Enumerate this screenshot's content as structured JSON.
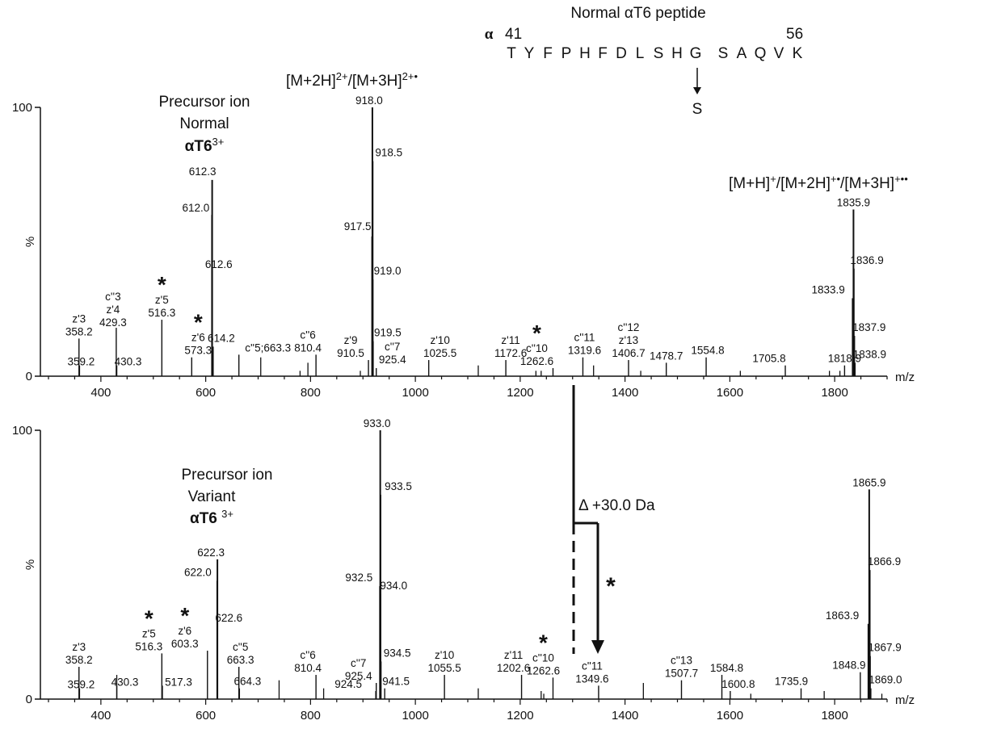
{
  "header": {
    "title": "Normal αT6 peptide",
    "alpha": "α",
    "start_pos": "41",
    "end_pos": "56",
    "sequence": [
      "T",
      "Y",
      "F",
      "P",
      "H",
      "F",
      "D",
      "L",
      "S",
      "H",
      "G",
      "S",
      "A",
      "Q",
      "V",
      "K"
    ],
    "substituted_residue": "G",
    "substitution": "S"
  },
  "annotations": {
    "precursor_top": [
      "Precursor ion",
      "Normal",
      "αT6"
    ],
    "precursor_top_charge": "3+",
    "precursor_bottom": [
      "Precursor ion",
      "Variant",
      "αT6 "
    ],
    "precursor_bottom_charge": "3+",
    "ion_2plus": "[M+2H]",
    "ion_2plus_sup": "2+",
    "ion_2plus_mid": "/[M+3H]",
    "ion_2plus_sup2": "2+•",
    "ion_1plus": "[M+H]",
    "ion_1plus_sup": "+",
    "ion_1plus_mid": "/[M+2H]",
    "ion_1plus_sup2": "+•",
    "ion_1plus_mid2": "/[M+3H]",
    "ion_1plus_sup3": "+••",
    "delta": "Δ +30.0 Da",
    "asterisk": "*"
  },
  "chart_data": [
    {
      "type": "bar",
      "panel": "normal",
      "xlabel": "m/z",
      "ylabel": "%",
      "xlim": [
        300,
        1900
      ],
      "ylim": [
        0,
        100
      ],
      "xticks": [
        400,
        600,
        800,
        1000,
        1200,
        1400,
        1600,
        1800
      ],
      "yticks": [
        0,
        100
      ],
      "peaks": [
        {
          "mz": 358.2,
          "intensity": 14,
          "label": [
            "z'3",
            "358.2"
          ]
        },
        {
          "mz": 359.2,
          "intensity": 4,
          "label": [
            "359.2"
          ]
        },
        {
          "mz": 429.3,
          "intensity": 18,
          "label": [
            "c''3",
            "z'4",
            "429.3"
          ]
        },
        {
          "mz": 430.3,
          "intensity": 4,
          "label": [
            "430.3"
          ]
        },
        {
          "mz": 516.3,
          "intensity": 21,
          "label": [
            "z'5",
            "516.3"
          ],
          "star": true
        },
        {
          "mz": 573.3,
          "intensity": 7,
          "label": [
            "z'6",
            "573.3"
          ],
          "star": true
        },
        {
          "mz": 612.0,
          "intensity": 60,
          "label": [
            "612.0"
          ]
        },
        {
          "mz": 612.3,
          "intensity": 73,
          "label": [
            "612.3"
          ]
        },
        {
          "mz": 612.6,
          "intensity": 39,
          "label": [
            "612.6"
          ]
        },
        {
          "mz": 614.2,
          "intensity": 11,
          "label": [
            "614.2"
          ]
        },
        {
          "mz": 663.3,
          "intensity": 8,
          "label": [
            "c''5;663.3"
          ]
        },
        {
          "mz": 810.4,
          "intensity": 8,
          "label": [
            "c''6",
            "810.4"
          ]
        },
        {
          "mz": 910.5,
          "intensity": 6,
          "label": [
            "z'9",
            "910.5"
          ]
        },
        {
          "mz": 917.5,
          "intensity": 52,
          "label": [
            "917.5"
          ]
        },
        {
          "mz": 918.0,
          "intensity": 100,
          "label": [
            "918.0"
          ]
        },
        {
          "mz": 918.5,
          "intensity": 80,
          "label": [
            "918.5"
          ]
        },
        {
          "mz": 919.0,
          "intensity": 36,
          "label": [
            "919.0"
          ]
        },
        {
          "mz": 919.5,
          "intensity": 13,
          "label": [
            "919.5"
          ]
        },
        {
          "mz": 925.4,
          "intensity": 3,
          "label": [
            "c''7",
            "925.4"
          ]
        },
        {
          "mz": 1025.5,
          "intensity": 6,
          "label": [
            "z'10",
            "1025.5"
          ]
        },
        {
          "mz": 1172.6,
          "intensity": 6,
          "label": [
            "z'11",
            "1172.6"
          ]
        },
        {
          "mz": 1262.6,
          "intensity": 3,
          "label": [
            "c''10",
            "1262.6"
          ],
          "star": true
        },
        {
          "mz": 1319.6,
          "intensity": 7,
          "label": [
            "c''11",
            "1319.6"
          ]
        },
        {
          "mz": 1406.7,
          "intensity": 6,
          "label": [
            "c''12",
            "z'13",
            "1406.7"
          ]
        },
        {
          "mz": 1478.7,
          "intensity": 5,
          "label": [
            "1478.7"
          ]
        },
        {
          "mz": 1554.8,
          "intensity": 7,
          "label": [
            "1554.8"
          ]
        },
        {
          "mz": 1705.8,
          "intensity": 4,
          "label": [
            "1705.8"
          ]
        },
        {
          "mz": 1818.9,
          "intensity": 4,
          "label": [
            "1818.9"
          ]
        },
        {
          "mz": 1833.9,
          "intensity": 29,
          "label": [
            "1833.9"
          ]
        },
        {
          "mz": 1835.9,
          "intensity": 62,
          "label": [
            "1835.9"
          ]
        },
        {
          "mz": 1836.9,
          "intensity": 40,
          "label": [
            "1836.9"
          ]
        },
        {
          "mz": 1837.9,
          "intensity": 15,
          "label": [
            "1837.9"
          ]
        },
        {
          "mz": 1838.9,
          "intensity": 5,
          "label": [
            "1838.9"
          ]
        }
      ],
      "minor_peaks": [
        {
          "mz": 705,
          "intensity": 7
        },
        {
          "mz": 780,
          "intensity": 2
        },
        {
          "mz": 795,
          "intensity": 5
        },
        {
          "mz": 895,
          "intensity": 2
        },
        {
          "mz": 1120,
          "intensity": 4
        },
        {
          "mz": 1230,
          "intensity": 2
        },
        {
          "mz": 1240,
          "intensity": 2
        },
        {
          "mz": 1340,
          "intensity": 4
        },
        {
          "mz": 1430,
          "intensity": 2
        },
        {
          "mz": 1620,
          "intensity": 2
        },
        {
          "mz": 1790,
          "intensity": 2
        },
        {
          "mz": 1810,
          "intensity": 2
        }
      ]
    },
    {
      "type": "bar",
      "panel": "variant",
      "xlabel": "m/z",
      "ylabel": "%",
      "xlim": [
        300,
        1900
      ],
      "ylim": [
        0,
        100
      ],
      "xticks": [
        400,
        600,
        800,
        1000,
        1200,
        1400,
        1600,
        1800
      ],
      "yticks": [
        0,
        100
      ],
      "peaks": [
        {
          "mz": 358.2,
          "intensity": 12,
          "label": [
            "z'3",
            "358.2"
          ]
        },
        {
          "mz": 359.2,
          "intensity": 4,
          "label": [
            "359.2"
          ]
        },
        {
          "mz": 430.3,
          "intensity": 5,
          "label": [
            "430.3"
          ]
        },
        {
          "mz": 516.3,
          "intensity": 17,
          "label": [
            "z'5",
            "516.3"
          ],
          "star": true
        },
        {
          "mz": 517.3,
          "intensity": 5,
          "label": [
            "517.3"
          ]
        },
        {
          "mz": 603.3,
          "intensity": 18,
          "label": [
            "z'6",
            "603.3"
          ],
          "star": true
        },
        {
          "mz": 622.0,
          "intensity": 44,
          "label": [
            "622.0"
          ]
        },
        {
          "mz": 622.3,
          "intensity": 52,
          "label": [
            "622.3"
          ]
        },
        {
          "mz": 622.6,
          "intensity": 27,
          "label": [
            "622.6"
          ]
        },
        {
          "mz": 663.3,
          "intensity": 12,
          "label": [
            "c''5",
            "663.3"
          ]
        },
        {
          "mz": 664.3,
          "intensity": 4,
          "label": [
            "664.3"
          ]
        },
        {
          "mz": 810.4,
          "intensity": 9,
          "label": [
            "c''6",
            "810.4"
          ]
        },
        {
          "mz": 924.5,
          "intensity": 3,
          "label": [
            "924.5"
          ]
        },
        {
          "mz": 925.4,
          "intensity": 6,
          "label": [
            "c''7",
            "925.4"
          ]
        },
        {
          "mz": 932.5,
          "intensity": 42,
          "label": [
            "932.5"
          ]
        },
        {
          "mz": 933.0,
          "intensity": 100,
          "label": [
            "933.0"
          ]
        },
        {
          "mz": 933.5,
          "intensity": 76,
          "label": [
            "933.5"
          ]
        },
        {
          "mz": 934.0,
          "intensity": 39,
          "label": [
            "934.0"
          ]
        },
        {
          "mz": 934.5,
          "intensity": 14,
          "label": [
            "934.5"
          ]
        },
        {
          "mz": 941.5,
          "intensity": 4,
          "label": [
            "941.5"
          ]
        },
        {
          "mz": 1055.5,
          "intensity": 9,
          "label": [
            "z'10",
            "1055.5"
          ]
        },
        {
          "mz": 1202.6,
          "intensity": 9,
          "label": [
            "z'11",
            "1202.6"
          ]
        },
        {
          "mz": 1262.6,
          "intensity": 8,
          "label": [
            "c''10",
            "1262.6"
          ],
          "star": true
        },
        {
          "mz": 1349.6,
          "intensity": 5,
          "label": [
            "c''11",
            "1349.6"
          ]
        },
        {
          "mz": 1507.7,
          "intensity": 7,
          "label": [
            "c''13",
            "1507.7"
          ]
        },
        {
          "mz": 1584.8,
          "intensity": 9,
          "label": [
            "1584.8"
          ]
        },
        {
          "mz": 1600.8,
          "intensity": 3,
          "label": [
            "1600.8"
          ]
        },
        {
          "mz": 1735.9,
          "intensity": 4,
          "label": [
            "1735.9"
          ]
        },
        {
          "mz": 1848.9,
          "intensity": 10,
          "label": [
            "1848.9"
          ]
        },
        {
          "mz": 1863.9,
          "intensity": 28,
          "label": [
            "1863.9"
          ]
        },
        {
          "mz": 1865.9,
          "intensity": 78,
          "label": [
            "1865.9"
          ]
        },
        {
          "mz": 1866.9,
          "intensity": 48,
          "label": [
            "1866.9"
          ]
        },
        {
          "mz": 1867.9,
          "intensity": 16,
          "label": [
            "1867.9"
          ]
        },
        {
          "mz": 1869.0,
          "intensity": 4,
          "label": [
            "1869.0"
          ]
        }
      ],
      "minor_peaks": [
        {
          "mz": 430.3,
          "intensity": 9
        },
        {
          "mz": 740,
          "intensity": 7
        },
        {
          "mz": 825,
          "intensity": 4
        },
        {
          "mz": 1120,
          "intensity": 4
        },
        {
          "mz": 1240,
          "intensity": 3
        },
        {
          "mz": 1245,
          "intensity": 2
        },
        {
          "mz": 1435,
          "intensity": 6
        },
        {
          "mz": 1640,
          "intensity": 2
        },
        {
          "mz": 1780,
          "intensity": 3
        },
        {
          "mz": 1890,
          "intensity": 2
        }
      ]
    }
  ]
}
